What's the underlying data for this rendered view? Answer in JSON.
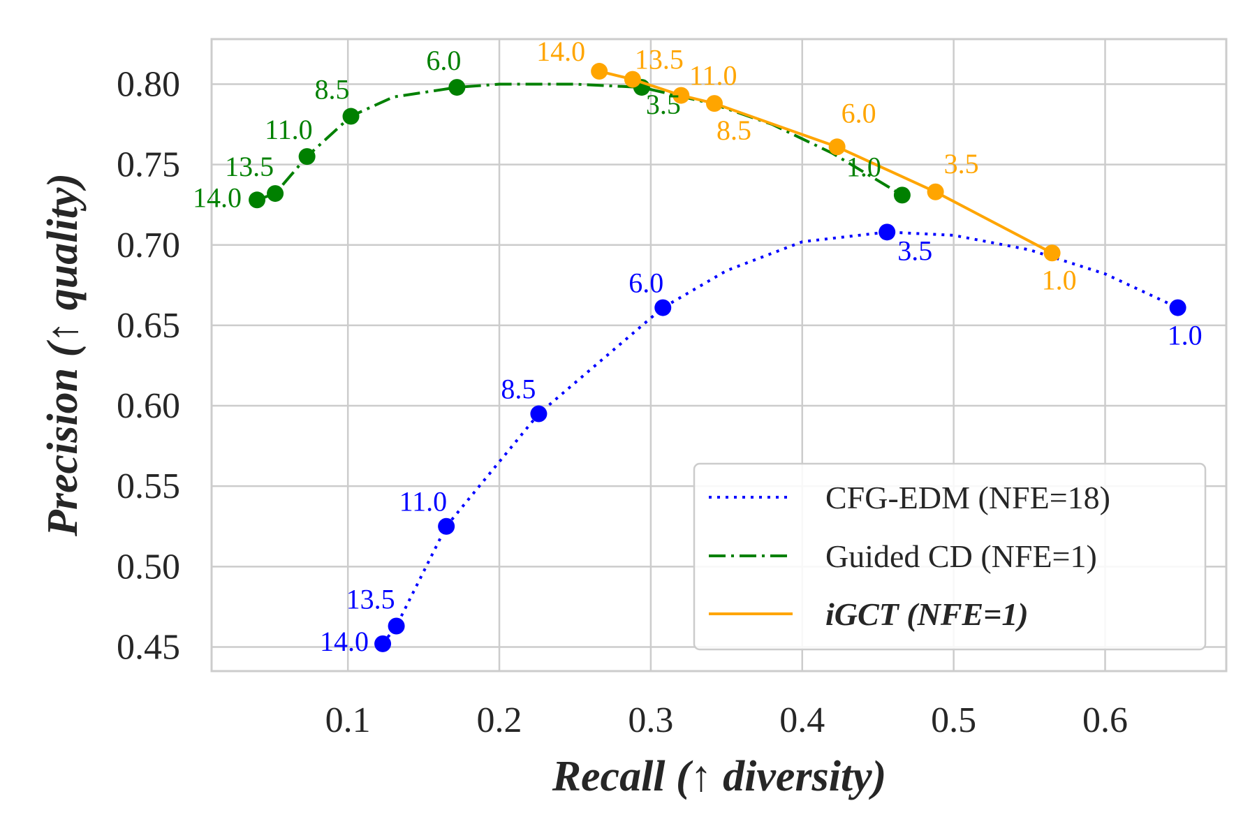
{
  "chart_data": {
    "type": "line",
    "xlabel": "Recall (↑ diversity)",
    "ylabel": "Precision (↑ quality)",
    "xlim": [
      0.01,
      0.68
    ],
    "ylim": [
      0.435,
      0.828
    ],
    "xticks": [
      0.1,
      0.2,
      0.3,
      0.4,
      0.5,
      0.6
    ],
    "xtick_labels": [
      "0.1",
      "0.2",
      "0.3",
      "0.4",
      "0.5",
      "0.6"
    ],
    "yticks": [
      0.45,
      0.5,
      0.55,
      0.6,
      0.65,
      0.7,
      0.75,
      0.8
    ],
    "ytick_labels": [
      "0.45",
      "0.50",
      "0.55",
      "0.60",
      "0.65",
      "0.70",
      "0.75",
      "0.80"
    ],
    "grid": true,
    "legend_position": "lower-right",
    "series": [
      {
        "name": "CFG-EDM (NFE=18)",
        "color": "#0000ff",
        "line_style": "dotted",
        "x": [
          0.123,
          0.132,
          0.165,
          0.226,
          0.308,
          0.456,
          0.648
        ],
        "y": [
          0.452,
          0.463,
          0.525,
          0.595,
          0.661,
          0.708,
          0.661
        ],
        "labels": [
          "14.0",
          "13.5",
          "11.0",
          "8.5",
          "6.0",
          "3.5",
          "1.0"
        ],
        "curve": {
          "x": [
            0.123,
            0.132,
            0.165,
            0.226,
            0.308,
            0.35,
            0.4,
            0.456,
            0.5,
            0.55,
            0.6,
            0.648
          ],
          "y": [
            0.452,
            0.463,
            0.525,
            0.595,
            0.661,
            0.684,
            0.702,
            0.708,
            0.706,
            0.697,
            0.682,
            0.661
          ]
        }
      },
      {
        "name": "Guided CD (NFE=1)",
        "color": "#008000",
        "line_style": "dashdot",
        "x": [
          0.04,
          0.052,
          0.073,
          0.102,
          0.172,
          0.294,
          0.466
        ],
        "y": [
          0.728,
          0.732,
          0.755,
          0.78,
          0.798,
          0.798,
          0.731
        ],
        "labels": [
          "14.0",
          "13.5",
          "11.0",
          "8.5",
          "6.0",
          "3.5",
          "1.0"
        ],
        "curve": {
          "x": [
            0.04,
            0.052,
            0.073,
            0.102,
            0.13,
            0.172,
            0.2,
            0.25,
            0.294,
            0.34,
            0.38,
            0.42,
            0.466
          ],
          "y": [
            0.728,
            0.732,
            0.755,
            0.78,
            0.792,
            0.798,
            0.8,
            0.8,
            0.798,
            0.788,
            0.775,
            0.757,
            0.731
          ]
        }
      },
      {
        "name": "iGCT (NFE=1)",
        "color": "#ffa500",
        "line_style": "solid",
        "x": [
          0.266,
          0.288,
          0.32,
          0.342,
          0.423,
          0.488,
          0.565
        ],
        "y": [
          0.808,
          0.803,
          0.793,
          0.788,
          0.761,
          0.733,
          0.695
        ],
        "labels": [
          "14.0",
          "13.5",
          "11.0",
          "8.5",
          "6.0",
          "3.5",
          "1.0"
        ],
        "curve": {
          "x": [
            0.266,
            0.288,
            0.32,
            0.342,
            0.423,
            0.488,
            0.565
          ],
          "y": [
            0.808,
            0.803,
            0.793,
            0.788,
            0.761,
            0.733,
            0.695
          ]
        }
      }
    ]
  }
}
